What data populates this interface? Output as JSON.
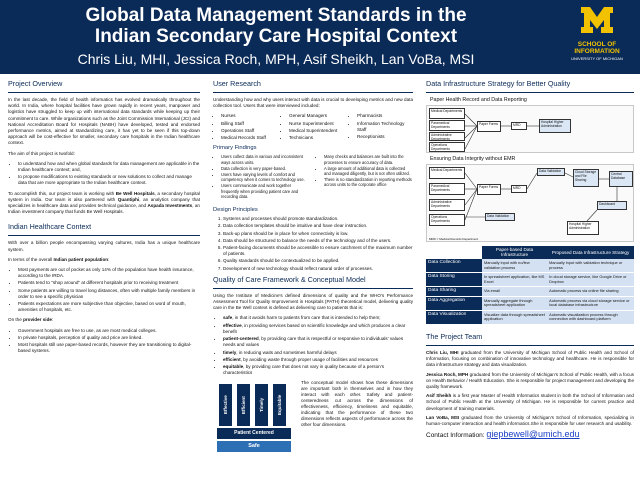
{
  "header": {
    "title_line1": "Global Data Management Standards in the",
    "title_line2": "Indian Secondary Care Hospital Context",
    "authors": "Chris Liu, MHI, Jessica Roch, MPH, Asif Sheikh, Lan VoBa, MSI",
    "logo_school": "SCHOOL OF",
    "logo_info": "INFORMATION",
    "logo_univ": "UNIVERSITY OF MICHIGAN"
  },
  "overview": {
    "heading": "Project Overview",
    "p1": "In the last decade, the field of health informatics has evolved dramatically throughout the world. In India, where hospital facilities have grown rapidly in recent years, manpower and logistics have struggled to keep up with international data standards while keeping up their commitment to care. While organizations such as the Joint Commission International (JCI) and National Accreditation Board for Hospitals (NABH) have developed, tested and endorsed performance metrics, aimed at standardizing care, it has yet to be seen if this top-down approach will be cost-effective for smaller, secondary care hospitals in the Indian healthcare context.",
    "aim_intro": "The aim of this project is twofold:",
    "aims": [
      "to understand how and when global standards for data management are applicable in the Indian healthcare context; and,",
      "to propose modifications to existing standards or new solutions to collect and manage data that are more appropriate to the Indian healthcare context."
    ],
    "p2_a": "To accomplish this, our project team is working with ",
    "p2_b": "Be Well Hospitals",
    "p2_c": ", a secondary hospital system in India. Our team is also partnered with ",
    "p2_d": "Quantiphi",
    "p2_e": ", an analytics company that specializes in healthcare data and provides technical guidance, and ",
    "p2_f": "Aspada Investments",
    "p2_g": ", an Indian investment company that funds Be Well Hospitals."
  },
  "context": {
    "heading": "Indian Healthcare Context",
    "p1": "With over a billion people encompassing varying cultures, India has a unique healthcare system.",
    "p2_a": "In terms of the overall ",
    "p2_b": "Indian patient population",
    "p2_c": ":",
    "bullets1": [
      "Most payments are out of pocket as only 14% of the population have health insurance, according to the IRDA.",
      "Patients tend to \"shop around\" at different hospitals prior to receiving treatment",
      "Some patients are willing to travel long distances, often with multiple family members in order to see a specific physician",
      "Patients expectations are more subjective than objective, based on word of mouth, amenities of hospitals, etc."
    ],
    "provider_a": "On the ",
    "provider_b": "provider side",
    "provider_c": ":",
    "bullets2": [
      "Government hospitals are free to use, as are most medical colleges.",
      "In private hospitals, perception of quality and price are linked.",
      "Most hospitals still use paper-based records, however they are transitioning to digital-based systems."
    ]
  },
  "research": {
    "heading": "User Research",
    "intro": "Understanding how and why users interact with data is crucial to developing metrics and new data collection tool. Users that were interviewed included:",
    "users_col1": [
      "Nurses",
      "Billing Staff",
      "Operations Staff",
      "Medical Records Staff"
    ],
    "users_col2": [
      "General Managers",
      "Nurse Superintendent",
      "Medical Superintendent",
      "Technicians"
    ],
    "users_col3": [
      "Pharmacists",
      "Information Technology Staff",
      "Receptionists"
    ],
    "findings_heading": "Primary Findings",
    "findings_col1": [
      "Users collect data in various and inconsistent ways across units.",
      "Data collection is very paper-based.",
      "Users have varying levels of comfort and competency when it comes to technology use.",
      "Users communicate and work together frequently when providing patient care and recording data."
    ],
    "findings_col2": [
      "Many checks and balances are built into the processes to ensure accuracy of data.",
      "A large amount of additional data is collected and managed diligently, but is not often utilized.",
      "There is no standardization in reporting methods across units to the corporate office"
    ],
    "principles_heading": "Design Principles",
    "principles": [
      "Systems and processes should promote standardization.",
      "Data collection templates should be intuitive and have clear instruction.",
      "Back-up plans should be in place for when connectivity is low.",
      "Data should be structured to balance the needs of the technology and of the users.",
      "Patient-facing documents should be accessible to ensure catchment of the maximum number of patients.",
      "Quality standards should be contextualized to be applied.",
      "Development of new technology should reflect natural order of processes."
    ]
  },
  "quality": {
    "heading": "Quality of Care Framework & Conceptual Model",
    "intro": "Using the Institute of Medicine's defined dimensions of quality and the WHO's Performance Assessment Tool for Quality Improvement in Hospitals (PATH) theoretical model, delivering quality care in the Be Well context is defined as delivering care to patients that is:",
    "items": [
      {
        "term": "safe",
        "desc": ", in that it avoids harm to patients from care that is intended to help them;"
      },
      {
        "term": "effective",
        "desc": ", in providing services based on scientific knowledge and which produces a clear benefit"
      },
      {
        "term": "patient-centered",
        "desc": ", by providing care that is respectful or responsive to individuals' values needs and values"
      },
      {
        "term": "timely",
        "desc": ", in reducing waits and sometimes harmful delays"
      },
      {
        "term": "efficient",
        "desc": ", by avoiding waste through proper usage of facilities and resources"
      },
      {
        "term": "equitable",
        "desc": ", by providing care that does not vary in quality because of a person's characteristics"
      }
    ],
    "pillars": [
      "Effective",
      "Efficient",
      "Timely",
      "Equitable"
    ],
    "roof": "Patient Centered",
    "base": "Safe",
    "model_text": "The conceptual model shows how these dimensions are important both in themselves and in how they interact with each other. Safety and patient-centeredness cut across the dimensions of effectiveness, efficiency, timeliness and equitable, indicating that the performance of these two dimensions reflects aspects of performance across the other four dimensions."
  },
  "infra": {
    "heading": "Data Infrastructure Strategy for Better Quality",
    "d1_label": "Paper Health Record and Data Reporting",
    "d2_label": "Ensuring Data Integrity without EMR",
    "boxes": {
      "medical": "Medical Departments",
      "paramedical": "Paramedical Departments",
      "admin": "Administrative Departments",
      "operations": "Operations Departments",
      "paper_forms": "Paper Forms",
      "mrd": "MRD",
      "hospital": "Hospital Higher Administration",
      "data_val": "Data Validation",
      "cloud": "Cloud Storage and File Sharing",
      "central_db": "Central Database",
      "dashboard": "Dashboard",
      "data_val2": "Data Validation"
    },
    "note": "MRD = Medical Records Department",
    "table": {
      "headers": [
        "",
        "Paper-based Data Infrastructure",
        "Proposed Data Infrastructure Strategy"
      ],
      "rows": [
        [
          "Data Collection",
          "Manually input with no/few validation process",
          "Manually input with validation technique or process"
        ],
        [
          "Data Storing",
          "In spreadsheet application, like MS Excel",
          "In cloud storage service, like Google Drive or Dropbox"
        ],
        [
          "Data Sharing",
          "Via email",
          "Automatic process via online file sharing"
        ],
        [
          "Data Aggregation",
          "Manually aggregate through spreadsheet application",
          "Automatic process via cloud storage service or local database infrastructure"
        ],
        [
          "Data Visualization",
          "Visualize data through spreadsheet application",
          "Automatic visualization process through connection with dashboard platform"
        ]
      ]
    }
  },
  "team": {
    "heading": "The Project Team",
    "members": [
      {
        "name": "Chris Liu, MHI",
        "bio": " graduated from the University of Michigan School of Public Health and School of Information, focusing on combination of innovative technology and healthcare. He is responsible for data infrastructure strategy and data visualization."
      },
      {
        "name": "Jessica Roch, MPH",
        "bio": " graduated from the University of Michigan's School of Public Health, with a focus on Health Behavior / Health Education. She is responsible for project management and developing the quality framework."
      },
      {
        "name": "Asif Sheikh",
        "bio": " is a first year Master of Health Informatics student in both the School of Information and School of Public Health at the University of Michigan. He is responsible for current practice and development of training materials."
      },
      {
        "name": "Lan VoBa, MSI",
        "bio": " graduated from the University of Michigan's School of Information, specializing in human-computer interaction and health informatics.She is responsible for user research and usability."
      }
    ],
    "contact_label": "Contact Information: ",
    "contact_email": "giepbewell@umich.edu"
  }
}
